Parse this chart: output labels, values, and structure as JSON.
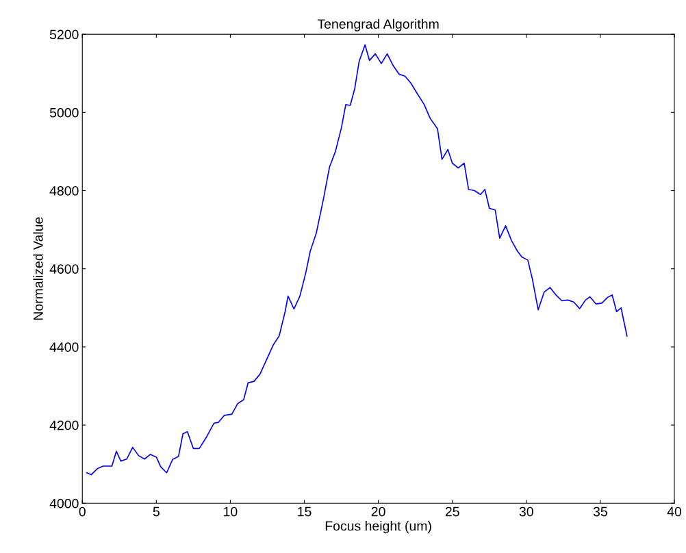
{
  "chart_data": {
    "type": "line",
    "title": "Tenengrad Algorithm",
    "xlabel": "Focus height (um)",
    "ylabel": "Normalized Value",
    "xlim": [
      0,
      40
    ],
    "xticks": [
      0,
      5,
      10,
      15,
      20,
      25,
      30,
      35,
      40
    ],
    "ylim": [
      4000,
      5200
    ],
    "yticks": [
      4000,
      4200,
      4400,
      4600,
      4800,
      5000,
      5200
    ],
    "grid": false,
    "marker": "none",
    "line_style": "solid",
    "series": [
      {
        "color": "#0000ff",
        "x": [
          0.3,
          0.6,
          1.0,
          1.4,
          2.0,
          2.3,
          2.6,
          3.0,
          3.4,
          3.8,
          4.2,
          4.6,
          5.0,
          5.3,
          5.7,
          6.1,
          6.5,
          6.8,
          7.1,
          7.5,
          7.9,
          8.4,
          8.9,
          9.2,
          9.6,
          10.1,
          10.5,
          10.9,
          11.2,
          11.6,
          12.0,
          12.6,
          12.9,
          13.3,
          13.7,
          13.9,
          14.3,
          14.7,
          15.1,
          15.4,
          15.8,
          16.3,
          16.7,
          17.1,
          17.5,
          17.8,
          18.1,
          18.4,
          18.7,
          19.1,
          19.4,
          19.8,
          20.2,
          20.6,
          21.0,
          21.4,
          21.8,
          22.2,
          22.6,
          23.1,
          23.5,
          24.0,
          24.3,
          24.7,
          25.0,
          25.4,
          25.8,
          26.1,
          26.5,
          26.9,
          27.2,
          27.5,
          27.9,
          28.2,
          28.6,
          29.0,
          29.4,
          29.7,
          30.1,
          30.4,
          30.8,
          31.2,
          31.6,
          32.0,
          32.4,
          32.8,
          33.2,
          33.6,
          34.0,
          34.3,
          34.7,
          35.1,
          35.5,
          35.8,
          36.1,
          36.4,
          36.8
        ],
        "values": [
          4078,
          4073,
          4088,
          4095,
          4095,
          4133,
          4108,
          4113,
          4143,
          4122,
          4113,
          4125,
          4118,
          4093,
          4078,
          4112,
          4120,
          4178,
          4183,
          4140,
          4140,
          4170,
          4205,
          4207,
          4225,
          4228,
          4255,
          4265,
          4308,
          4312,
          4330,
          4380,
          4405,
          4428,
          4490,
          4530,
          4497,
          4530,
          4590,
          4645,
          4690,
          4780,
          4860,
          4900,
          4960,
          5020,
          5018,
          5060,
          5130,
          5173,
          5133,
          5150,
          5125,
          5150,
          5120,
          5098,
          5093,
          5075,
          5050,
          5020,
          4985,
          4958,
          4880,
          4905,
          4870,
          4858,
          4870,
          4803,
          4800,
          4790,
          4803,
          4755,
          4750,
          4678,
          4710,
          4672,
          4645,
          4630,
          4622,
          4575,
          4495,
          4540,
          4552,
          4533,
          4518,
          4520,
          4515,
          4498,
          4520,
          4528,
          4510,
          4512,
          4527,
          4533,
          4490,
          4500,
          4428
        ]
      }
    ]
  }
}
